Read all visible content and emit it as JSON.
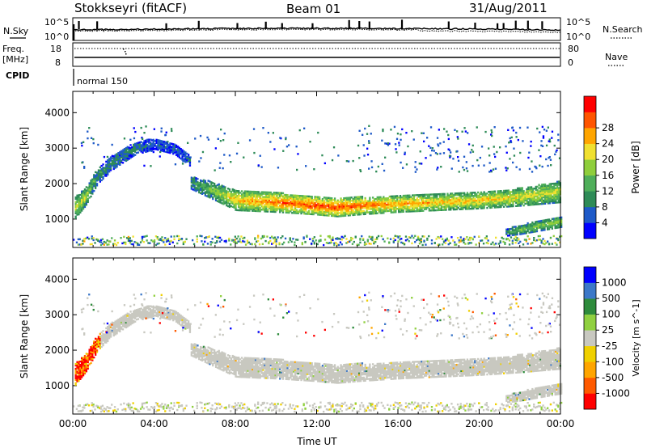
{
  "header": {
    "station": "Stokkseyri (fitACF)",
    "beam": "Beam 01",
    "date": "31/Aug/2011"
  },
  "noise_panel": {
    "left_label": "N.Sky",
    "right_label": "N.Search",
    "left_ticks": [
      "10^5",
      "10^0"
    ],
    "right_ticks": [
      "10^5",
      "10^0"
    ]
  },
  "freq_panel": {
    "left_label_line1": "Freq.",
    "left_label_line2": "[MHz]",
    "right_label": "Nave",
    "left_ticks": [
      "18",
      "8"
    ],
    "right_ticks": [
      "80",
      "0"
    ]
  },
  "cpid": {
    "label": "CPID",
    "mode": "normal 150"
  },
  "colors": {
    "power": [
      "#0000ff",
      "#1e5ac8",
      "#2e8b57",
      "#4fae5a",
      "#8fce3c",
      "#f0e030",
      "#ffa500",
      "#ff5500",
      "#ff0000"
    ],
    "velocity": [
      "#ff0000",
      "#ff5a00",
      "#ffa500",
      "#f0d000",
      "#c8c8c0",
      "#90d040",
      "#2e8b3c",
      "#3c78c8",
      "#0000ff"
    ],
    "velocity_gray": "#c8c8c0"
  },
  "chart_data": [
    {
      "type": "heatmap",
      "name": "power",
      "ylabel": "Slant Range [km]",
      "ylim": [
        200,
        4600
      ],
      "yticks": [
        "1000",
        "2000",
        "3000",
        "4000"
      ],
      "ytick_values": [
        1000,
        2000,
        3000,
        4000
      ],
      "xlim_hours": [
        0,
        24
      ],
      "colorbar_label": "Power [dB]",
      "colorbar_ticks": [
        "4",
        "8",
        "12",
        "16",
        "20",
        "24",
        "28"
      ],
      "colorbar_range": [
        0,
        32
      ],
      "structures": [
        {
          "desc": "main F-region echo band",
          "t": [
            5.8,
            7.0,
            8.0,
            10.0,
            12.0,
            13.0,
            14.0,
            16.0,
            18.0,
            20.0,
            22.0,
            24.0
          ],
          "center_km": [
            2000,
            1750,
            1500,
            1450,
            1350,
            1300,
            1350,
            1400,
            1450,
            1500,
            1600,
            1750
          ],
          "width_km": [
            350,
            500,
            550,
            550,
            500,
            500,
            500,
            450,
            450,
            450,
            500,
            600
          ],
          "power_db": [
            10,
            16,
            22,
            26,
            28,
            28,
            27,
            24,
            22,
            22,
            20,
            18
          ]
        },
        {
          "desc": "early arc",
          "t": [
            0.1,
            0.6,
            1.2,
            2.0,
            3.0,
            4.0,
            5.0,
            5.8
          ],
          "center_km": [
            1300,
            1600,
            2200,
            2600,
            2950,
            3100,
            2950,
            2600
          ],
          "width_km": [
            600,
            500,
            450,
            400,
            350,
            300,
            300,
            300
          ],
          "power_db": [
            18,
            18,
            10,
            8,
            8,
            6,
            6,
            6
          ]
        },
        {
          "desc": "late near-range patch",
          "t": [
            21.3,
            22.0,
            23.0,
            24.0
          ],
          "center_km": [
            600,
            680,
            800,
            900
          ],
          "width_km": [
            200,
            260,
            300,
            300
          ],
          "power_db": [
            10,
            14,
            16,
            16
          ]
        }
      ]
    },
    {
      "type": "heatmap",
      "name": "velocity",
      "ylabel": "Slant Range [km]",
      "ylim": [
        200,
        4600
      ],
      "yticks": [
        "1000",
        "2000",
        "3000",
        "4000"
      ],
      "ytick_values": [
        1000,
        2000,
        3000,
        4000
      ],
      "xlim_hours": [
        0,
        24
      ],
      "xticks": [
        "00:00",
        "04:00",
        "08:00",
        "12:00",
        "16:00",
        "20:00",
        "00:00"
      ],
      "xtick_values": [
        0,
        4,
        8,
        12,
        16,
        20,
        24
      ],
      "xlabel": "Time UT",
      "colorbar_label": "Velocity [m s^-1]",
      "colorbar_ticks": [
        "1000",
        "500",
        "100",
        "25",
        "-25",
        "-100",
        "-500",
        "-1000"
      ]
    }
  ]
}
